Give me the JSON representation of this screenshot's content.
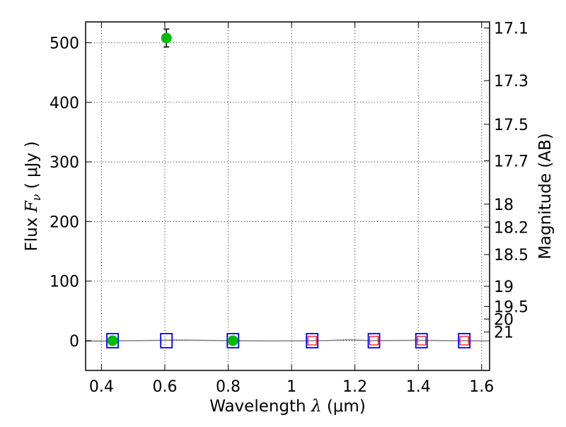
{
  "chart_data": {
    "type": "scatter",
    "xlabel": {
      "prefix": "Wavelength  ",
      "symbol": "λ",
      "unit": " (μm)"
    },
    "ylabel": {
      "prefix": "Flux  ",
      "symbol": "F",
      "subscript": "ν",
      "unit": "  ( μJy )"
    },
    "y2label": "Magnitude (AB)",
    "xlim": [
      0.35,
      1.625
    ],
    "ylim": [
      -50,
      535
    ],
    "grid": true,
    "x_ticks": [
      0.4,
      0.6,
      0.8,
      1.0,
      1.2,
      1.4,
      1.6
    ],
    "x_tick_labels": [
      "0.4",
      "0.6",
      "0.8",
      "1",
      "1.2",
      "1.4",
      "1.6"
    ],
    "y_ticks": [
      0,
      100,
      200,
      300,
      400,
      500
    ],
    "y_tick_labels": [
      "0",
      "100",
      "200",
      "300",
      "400",
      "500"
    ],
    "magnitude_ticks": [
      17.1,
      17.3,
      17.5,
      17.7,
      18,
      18.2,
      18.5,
      19,
      19.5,
      20,
      21
    ],
    "magnitude_tick_labels": [
      "17.1",
      "17.3",
      "17.5",
      "17.7",
      "18",
      "18.2",
      "18.5",
      "19",
      "19.5",
      "20",
      "21"
    ],
    "series": [
      {
        "marker": "circle",
        "color": "#00bb00",
        "points": [
          {
            "x": 0.435,
            "y": 0,
            "err": 2
          },
          {
            "x": 0.605,
            "y": 508,
            "err": 15
          },
          {
            "x": 0.815,
            "y": 0,
            "err": 2
          }
        ]
      },
      {
        "marker": "open-square",
        "color": "#0000ff",
        "points": [
          {
            "x": 0.435,
            "y": 0
          },
          {
            "x": 0.605,
            "y": 0
          },
          {
            "x": 0.815,
            "y": 0
          },
          {
            "x": 1.065,
            "y": 0
          },
          {
            "x": 1.26,
            "y": 0
          },
          {
            "x": 1.41,
            "y": 0
          },
          {
            "x": 1.545,
            "y": 0
          }
        ]
      },
      {
        "marker": "small-open-square",
        "color": "#ff0000",
        "points": [
          {
            "x": 1.065,
            "y": 0
          },
          {
            "x": 1.26,
            "y": 0
          },
          {
            "x": 1.41,
            "y": 0
          },
          {
            "x": 1.545,
            "y": 0
          }
        ]
      },
      {
        "marker": "line",
        "color": "#808080",
        "x": [
          0.35,
          0.5,
          0.65,
          0.8,
          0.95,
          1.1,
          1.18,
          1.25,
          1.4,
          1.5,
          1.625
        ],
        "y": [
          -1,
          0,
          1,
          0,
          -0.5,
          0,
          1.5,
          0,
          0.5,
          0,
          -0.5
        ]
      }
    ]
  }
}
